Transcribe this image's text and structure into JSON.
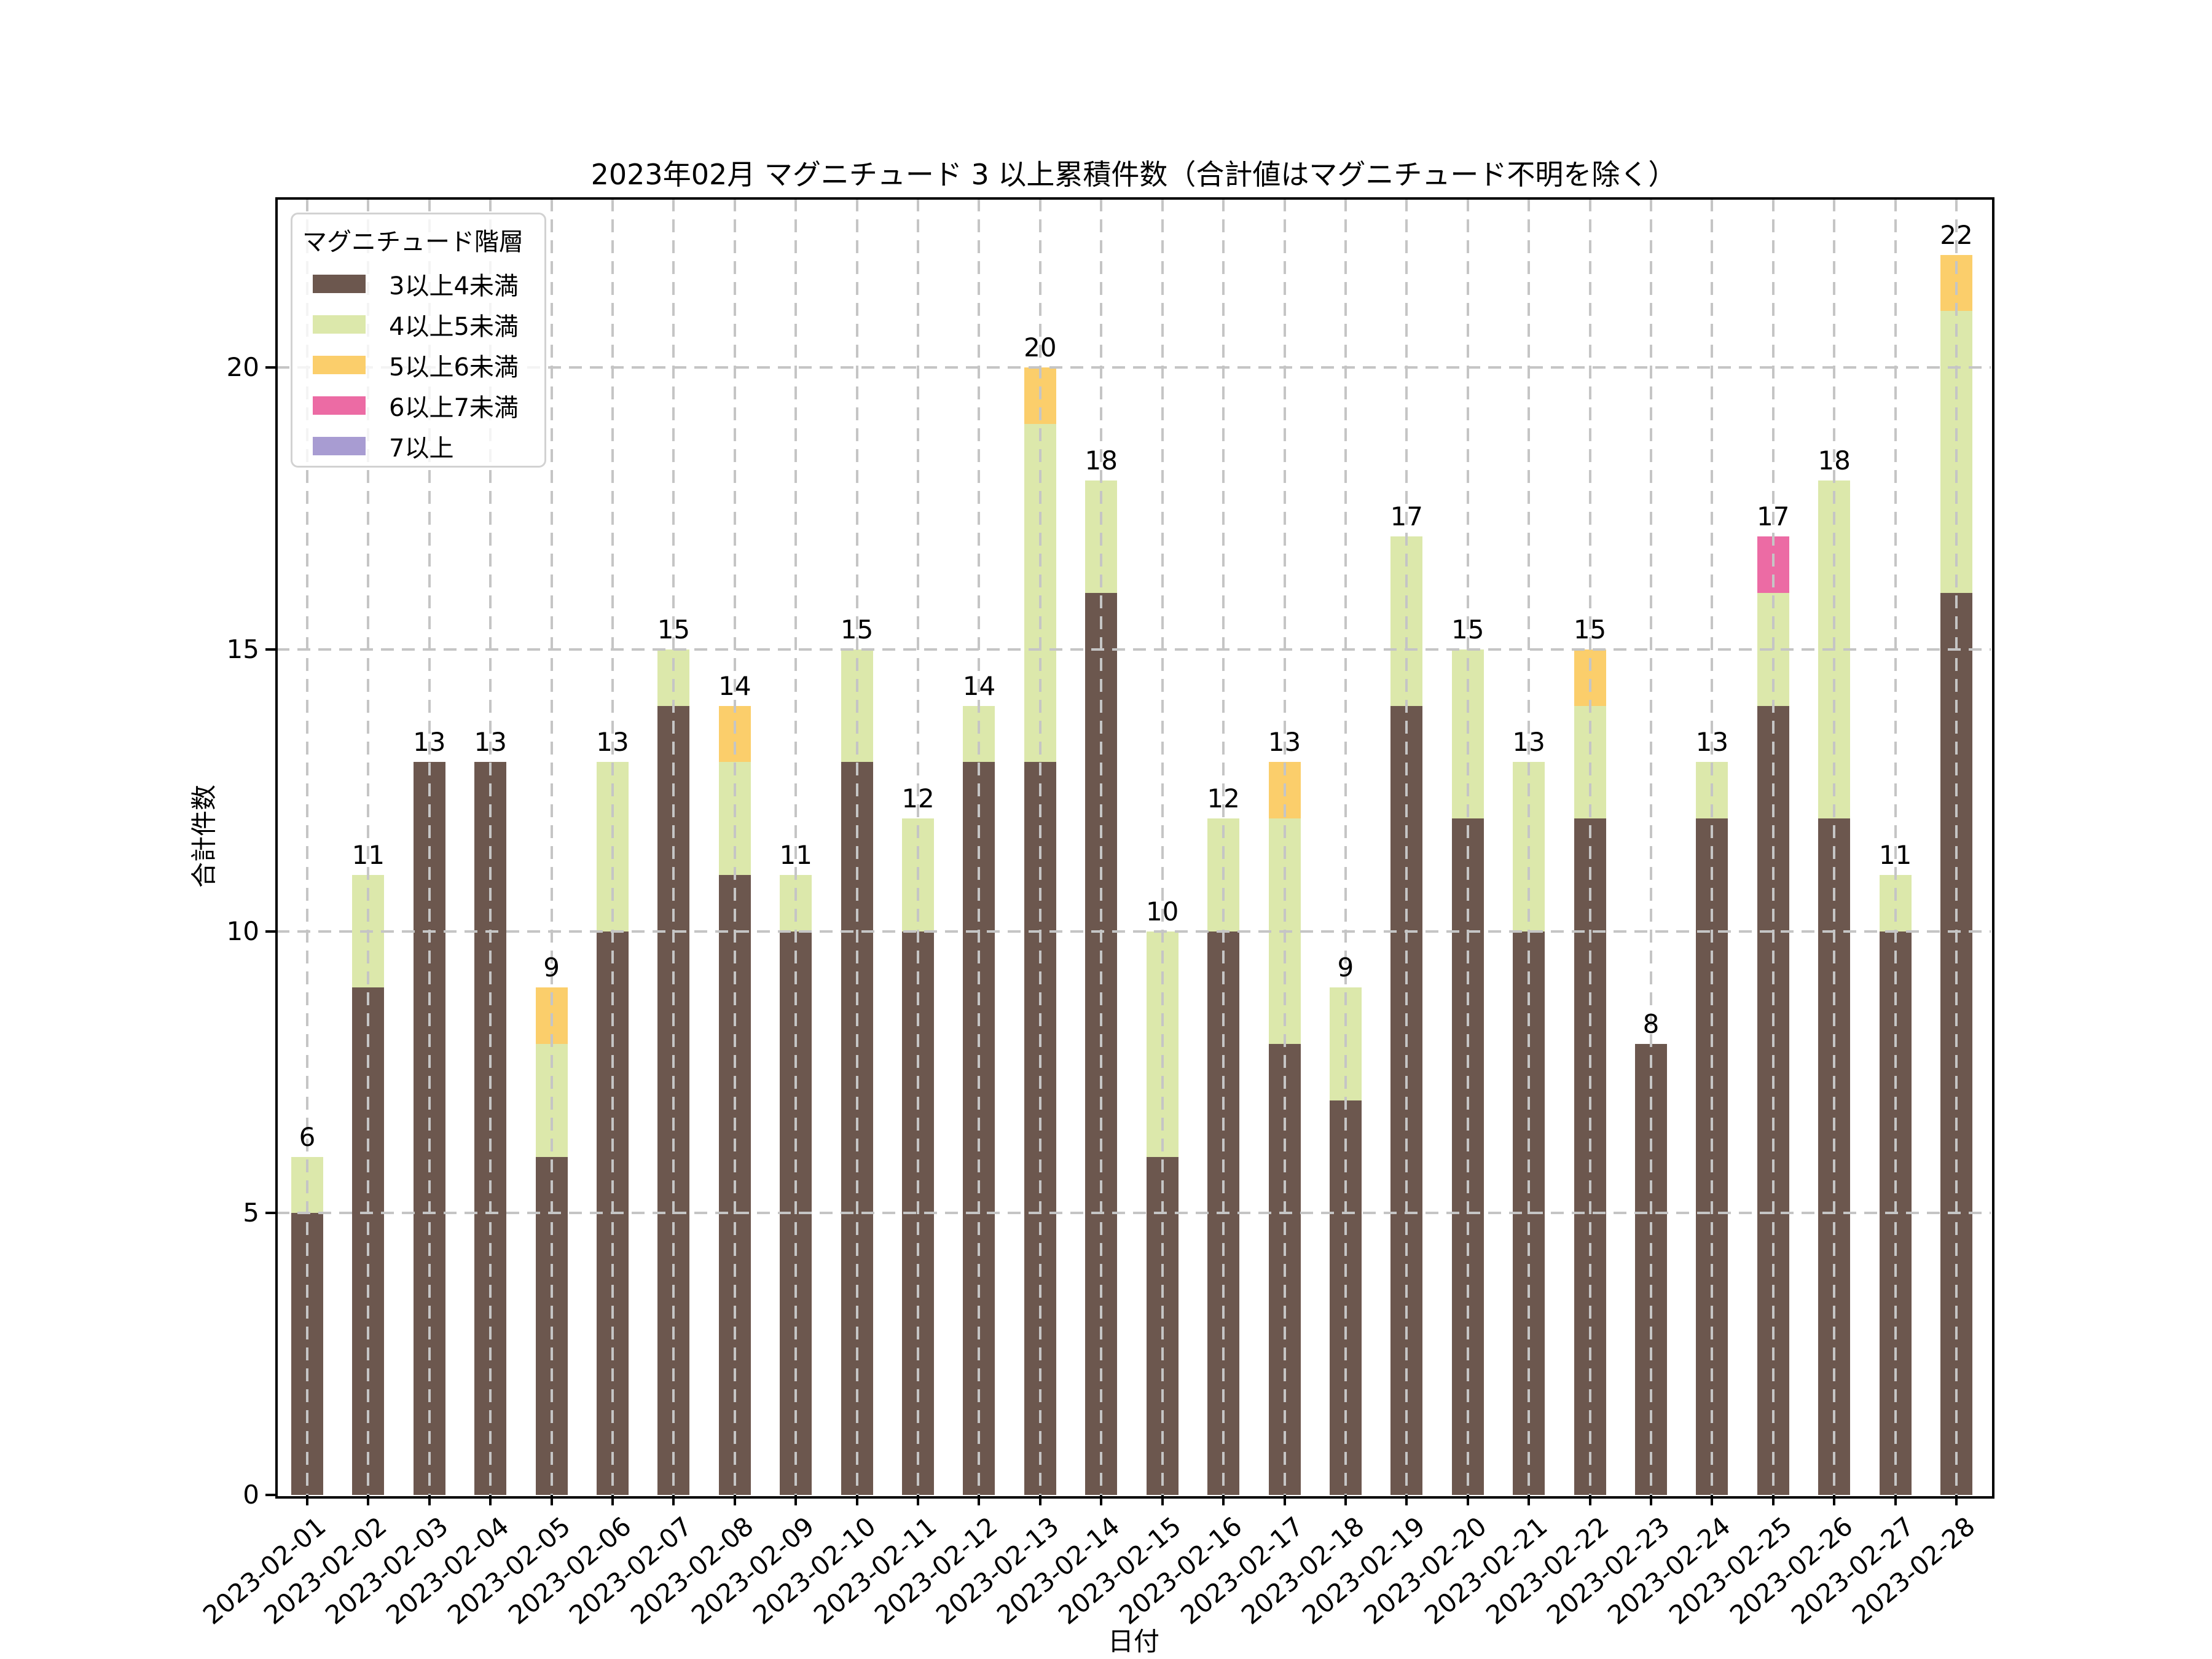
{
  "chart_data": {
    "type": "bar",
    "stacked": true,
    "title": "2023年02月 マグニチュード 3 以上累積件数（合計値はマグニチュード不明を除く）",
    "xlabel": "日付",
    "ylabel": "合計件数",
    "legend_title": "マグニチュード階層",
    "legend_position": "upper left",
    "grid": "dashed-over-bars",
    "grid_color": "#c5c5c5",
    "background_color": "#ffffff",
    "ylim": [
      0,
      23
    ],
    "yticks": [
      0,
      5,
      10,
      15,
      20
    ],
    "categories": [
      "2023-02-01",
      "2023-02-02",
      "2023-02-03",
      "2023-02-04",
      "2023-02-05",
      "2023-02-06",
      "2023-02-07",
      "2023-02-08",
      "2023-02-09",
      "2023-02-10",
      "2023-02-11",
      "2023-02-12",
      "2023-02-13",
      "2023-02-14",
      "2023-02-15",
      "2023-02-16",
      "2023-02-17",
      "2023-02-18",
      "2023-02-19",
      "2023-02-20",
      "2023-02-21",
      "2023-02-22",
      "2023-02-23",
      "2023-02-24",
      "2023-02-25",
      "2023-02-26",
      "2023-02-27",
      "2023-02-28"
    ],
    "series": [
      {
        "name": "3以上4未満",
        "color": "#6c574e",
        "values": [
          5,
          9,
          13,
          13,
          6,
          10,
          14,
          11,
          10,
          13,
          10,
          13,
          13,
          16,
          6,
          10,
          8,
          7,
          14,
          12,
          10,
          12,
          8,
          12,
          14,
          12,
          10,
          16
        ]
      },
      {
        "name": "4以上5未満",
        "color": "#dce8ab",
        "values": [
          1,
          2,
          0,
          0,
          2,
          3,
          1,
          2,
          1,
          2,
          2,
          1,
          6,
          2,
          4,
          2,
          4,
          2,
          3,
          3,
          3,
          2,
          0,
          1,
          2,
          6,
          1,
          5
        ]
      },
      {
        "name": "5以上6未満",
        "color": "#fbce6b",
        "values": [
          0,
          0,
          0,
          0,
          1,
          0,
          0,
          1,
          0,
          0,
          0,
          0,
          1,
          0,
          0,
          0,
          1,
          0,
          0,
          0,
          0,
          1,
          0,
          0,
          0,
          0,
          0,
          1
        ]
      },
      {
        "name": "6以上7未満",
        "color": "#ec6ba4",
        "values": [
          0,
          0,
          0,
          0,
          0,
          0,
          0,
          0,
          0,
          0,
          0,
          0,
          0,
          0,
          0,
          0,
          0,
          0,
          0,
          0,
          0,
          0,
          0,
          0,
          1,
          0,
          0,
          0
        ]
      },
      {
        "name": "7以上",
        "color": "#a89cd2",
        "values": [
          0,
          0,
          0,
          0,
          0,
          0,
          0,
          0,
          0,
          0,
          0,
          0,
          0,
          0,
          0,
          0,
          0,
          0,
          0,
          0,
          0,
          0,
          0,
          0,
          0,
          0,
          0,
          0
        ]
      }
    ],
    "totals": [
      6,
      11,
      13,
      13,
      9,
      13,
      15,
      14,
      11,
      15,
      12,
      14,
      20,
      18,
      10,
      12,
      13,
      9,
      17,
      15,
      13,
      15,
      8,
      13,
      17,
      18,
      11,
      22
    ]
  }
}
